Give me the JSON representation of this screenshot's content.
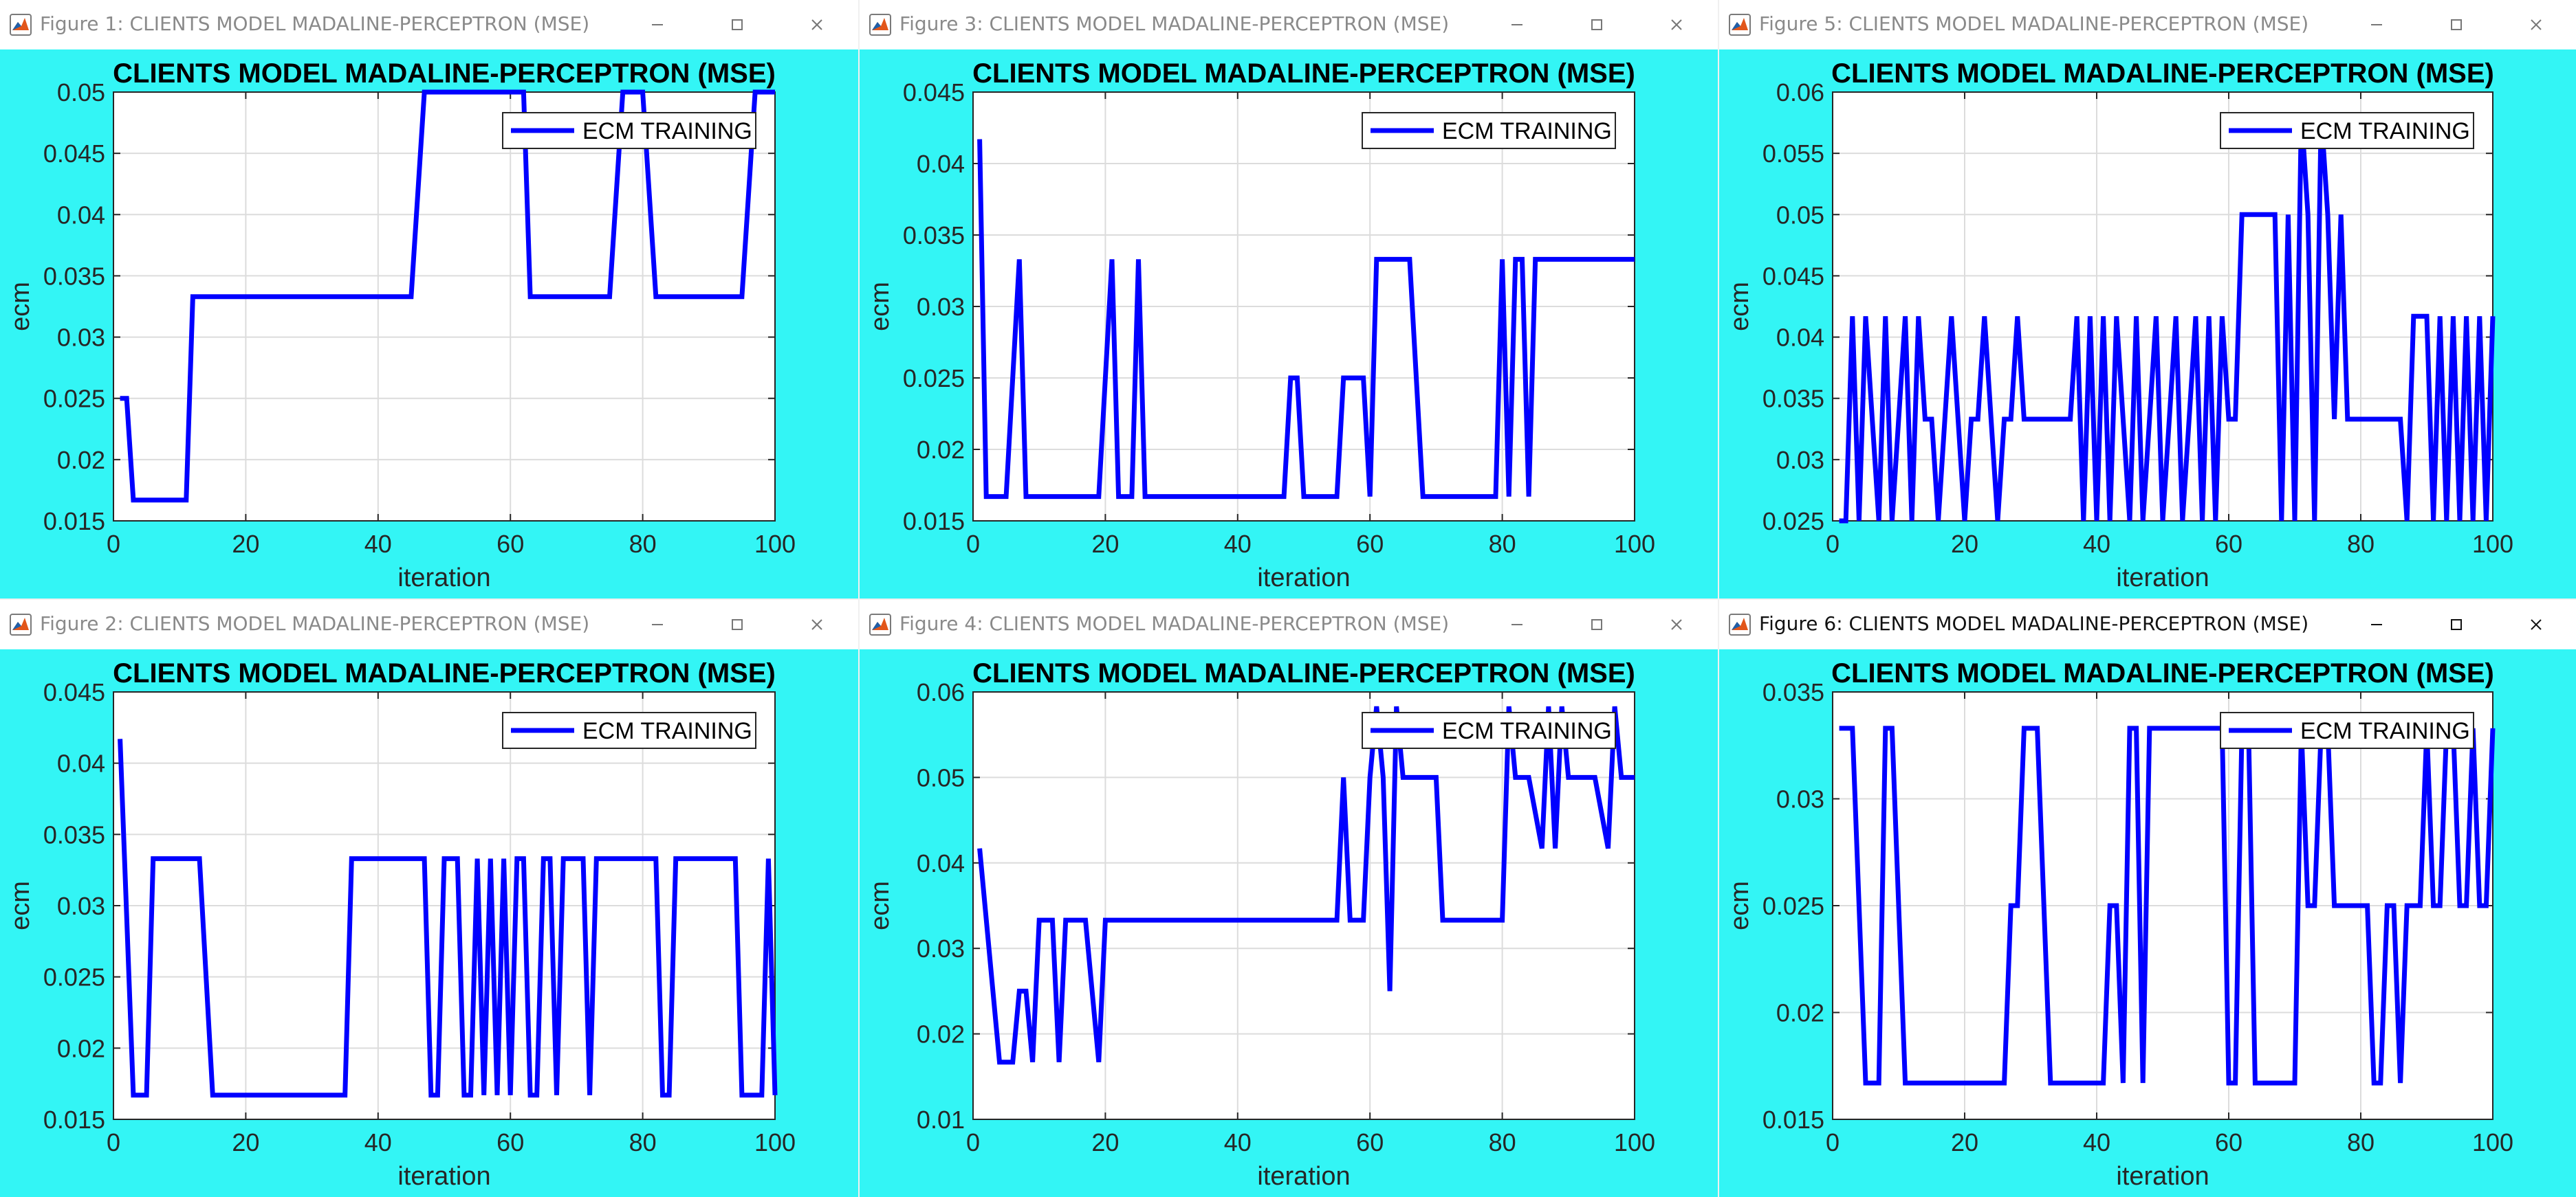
{
  "colors": {
    "figure_bg": "#33f5f5",
    "axes_bg": "#ffffff",
    "line": "#0000ff",
    "grid": "#dcdcdc",
    "titlebar_text_inactive": "#8a8a8a",
    "titlebar_text_active": "#111111"
  },
  "windows": [
    {
      "title": "Figure 1: CLIENTS MODEL MADALINE-PERCEPTRON (MSE)",
      "active": false,
      "minimize_icon": "minimize-icon",
      "maximize_icon": "maximize-icon",
      "close_icon": "close-icon"
    },
    {
      "title": "Figure 3: CLIENTS MODEL MADALINE-PERCEPTRON (MSE)",
      "active": false
    },
    {
      "title": "Figure 5: CLIENTS MODEL MADALINE-PERCEPTRON (MSE)",
      "active": false
    },
    {
      "title": "Figure 2: CLIENTS MODEL MADALINE-PERCEPTRON (MSE)",
      "active": false
    },
    {
      "title": "Figure 4: CLIENTS MODEL MADALINE-PERCEPTRON (MSE)",
      "active": false
    },
    {
      "title": "Figure 6: CLIENTS MODEL MADALINE-PERCEPTRON (MSE)",
      "active": true
    }
  ],
  "chart_data": [
    {
      "type": "line",
      "title": "CLIENTS MODEL MADALINE-PERCEPTRON (MSE)",
      "xlabel": "iteration",
      "ylabel": "ecm",
      "xlim": [
        0,
        100
      ],
      "ylim": [
        0.015,
        0.05
      ],
      "xticks": [
        "0",
        "20",
        "40",
        "60",
        "80",
        "100"
      ],
      "yticks": [
        "0.015",
        "0.02",
        "0.025",
        "0.03",
        "0.035",
        "0.04",
        "0.045",
        "0.05"
      ],
      "grid": true,
      "legend_position": "top-right",
      "series": [
        {
          "name": "ECM TRAINING",
          "x": [
            1,
            2,
            3,
            11,
            12,
            45,
            47,
            62,
            63,
            75,
            77,
            80,
            82,
            95,
            97,
            100
          ],
          "y": [
            0.025,
            0.025,
            0.0167,
            0.0167,
            0.0333,
            0.0333,
            0.05,
            0.05,
            0.0333,
            0.0333,
            0.05,
            0.05,
            0.0333,
            0.0333,
            0.05,
            0.05
          ]
        }
      ]
    },
    {
      "type": "line",
      "title": "CLIENTS MODEL MADALINE-PERCEPTRON (MSE)",
      "xlabel": "iteration",
      "ylabel": "ecm",
      "xlim": [
        0,
        100
      ],
      "ylim": [
        0.015,
        0.045
      ],
      "xticks": [
        "0",
        "20",
        "40",
        "60",
        "80",
        "100"
      ],
      "yticks": [
        "0.015",
        "0.02",
        "0.025",
        "0.03",
        "0.035",
        "0.04",
        "0.045"
      ],
      "grid": true,
      "legend_position": "top-right",
      "series": [
        {
          "name": "ECM TRAINING",
          "x": [
            1,
            2,
            5,
            7,
            8,
            19,
            21,
            22,
            24,
            25,
            26,
            47,
            48,
            49,
            50,
            55,
            56,
            59,
            60,
            61,
            62,
            66,
            68,
            79,
            80,
            81,
            82,
            83,
            84,
            85,
            100
          ],
          "y": [
            0.0417,
            0.0167,
            0.0167,
            0.0333,
            0.0167,
            0.0167,
            0.0333,
            0.0167,
            0.0167,
            0.0333,
            0.0167,
            0.0167,
            0.025,
            0.025,
            0.0167,
            0.0167,
            0.025,
            0.025,
            0.0167,
            0.0333,
            0.0333,
            0.0333,
            0.0167,
            0.0167,
            0.0333,
            0.0167,
            0.0333,
            0.0333,
            0.0167,
            0.0333,
            0.0333
          ]
        }
      ]
    },
    {
      "type": "line",
      "title": "CLIENTS MODEL MADALINE-PERCEPTRON (MSE)",
      "xlabel": "iteration",
      "ylabel": "ecm",
      "xlim": [
        0,
        100
      ],
      "ylim": [
        0.025,
        0.06
      ],
      "xticks": [
        "0",
        "20",
        "40",
        "60",
        "80",
        "100"
      ],
      "yticks": [
        "0.025",
        "0.03",
        "0.035",
        "0.04",
        "0.045",
        "0.05",
        "0.055",
        "0.06"
      ],
      "grid": true,
      "legend_position": "top-right",
      "series": [
        {
          "name": "ECM TRAINING",
          "x": [
            1,
            2,
            3,
            4,
            5,
            6,
            7,
            8,
            9,
            10,
            11,
            12,
            13,
            14,
            15,
            16,
            17,
            18,
            19,
            20,
            21,
            22,
            23,
            24,
            25,
            26,
            27,
            28,
            29,
            30,
            36,
            37,
            38,
            39,
            40,
            41,
            42,
            43,
            44,
            45,
            46,
            47,
            48,
            49,
            50,
            51,
            52,
            53,
            54,
            55,
            56,
            57,
            58,
            59,
            60,
            61,
            62,
            63,
            64,
            67,
            68,
            69,
            70,
            71,
            72,
            73,
            74,
            75,
            76,
            77,
            78,
            86,
            87,
            88,
            89,
            90,
            91,
            92,
            93,
            94,
            95,
            96,
            97,
            98,
            99,
            100
          ],
          "y": [
            0.025,
            0.025,
            0.0417,
            0.025,
            0.0417,
            0.0333,
            0.025,
            0.0417,
            0.025,
            0.0333,
            0.0417,
            0.025,
            0.0417,
            0.0333,
            0.0333,
            0.025,
            0.0333,
            0.0417,
            0.0333,
            0.025,
            0.0333,
            0.0333,
            0.0417,
            0.0333,
            0.025,
            0.0333,
            0.0333,
            0.0417,
            0.0333,
            0.0333,
            0.0333,
            0.0417,
            0.025,
            0.0417,
            0.025,
            0.0417,
            0.025,
            0.0417,
            0.0333,
            0.025,
            0.0417,
            0.025,
            0.0333,
            0.0417,
            0.025,
            0.0333,
            0.0417,
            0.025,
            0.0333,
            0.0417,
            0.025,
            0.0417,
            0.025,
            0.0417,
            0.0333,
            0.0333,
            0.05,
            0.05,
            0.05,
            0.05,
            0.025,
            0.05,
            0.025,
            0.0583,
            0.05,
            0.025,
            0.0583,
            0.05,
            0.0333,
            0.05,
            0.0333,
            0.0333,
            0.025,
            0.0417,
            0.0417,
            0.0417,
            0.025,
            0.0417,
            0.025,
            0.0417,
            0.025,
            0.0417,
            0.025,
            0.0417,
            0.025,
            0.0417
          ]
        }
      ]
    },
    {
      "type": "line",
      "title": "CLIENTS MODEL MADALINE-PERCEPTRON (MSE)",
      "xlabel": "iteration",
      "ylabel": "ecm",
      "xlim": [
        0,
        100
      ],
      "ylim": [
        0.015,
        0.045
      ],
      "xticks": [
        "0",
        "20",
        "40",
        "60",
        "80",
        "100"
      ],
      "yticks": [
        "0.015",
        "0.02",
        "0.025",
        "0.03",
        "0.035",
        "0.04",
        "0.045"
      ],
      "grid": true,
      "legend_position": "top-right",
      "series": [
        {
          "name": "ECM TRAINING",
          "x": [
            1,
            3,
            5,
            6,
            13,
            15,
            35,
            36,
            47,
            48,
            49,
            50,
            52,
            53,
            54,
            55,
            56,
            57,
            58,
            59,
            60,
            61,
            62,
            63,
            64,
            65,
            66,
            67,
            68,
            69,
            71,
            72,
            73,
            74,
            82,
            83,
            84,
            85,
            94,
            95,
            96,
            98,
            99,
            100
          ],
          "y": [
            0.0417,
            0.0167,
            0.0167,
            0.0333,
            0.0333,
            0.0167,
            0.0167,
            0.0333,
            0.0333,
            0.0167,
            0.0167,
            0.0333,
            0.0333,
            0.0167,
            0.0167,
            0.0333,
            0.0167,
            0.0333,
            0.0167,
            0.0333,
            0.0167,
            0.0333,
            0.0333,
            0.0167,
            0.0167,
            0.0333,
            0.0333,
            0.0167,
            0.0333,
            0.0333,
            0.0333,
            0.0167,
            0.0333,
            0.0333,
            0.0333,
            0.0167,
            0.0167,
            0.0333,
            0.0333,
            0.0167,
            0.0167,
            0.0167,
            0.0333,
            0.0167
          ]
        }
      ]
    },
    {
      "type": "line",
      "title": "CLIENTS MODEL MADALINE-PERCEPTRON (MSE)",
      "xlabel": "iteration",
      "ylabel": "ecm",
      "xlim": [
        0,
        100
      ],
      "ylim": [
        0.01,
        0.06
      ],
      "xticks": [
        "0",
        "20",
        "40",
        "60",
        "80",
        "100"
      ],
      "yticks": [
        "0.01",
        "0.02",
        "0.03",
        "0.04",
        "0.05",
        "0.06"
      ],
      "grid": true,
      "legend_position": "top-right",
      "series": [
        {
          "name": "ECM TRAINING",
          "x": [
            1,
            4,
            6,
            7,
            8,
            9,
            10,
            12,
            13,
            14,
            15,
            17,
            19,
            20,
            21,
            55,
            56,
            57,
            59,
            60,
            61,
            62,
            63,
            64,
            65,
            66,
            70,
            71,
            80,
            81,
            82,
            84,
            86,
            87,
            88,
            89,
            90,
            91,
            92,
            93,
            94,
            96,
            97,
            98,
            99,
            100
          ],
          "y": [
            0.0417,
            0.0167,
            0.0167,
            0.025,
            0.025,
            0.0167,
            0.0333,
            0.0333,
            0.0167,
            0.0333,
            0.0333,
            0.0333,
            0.0167,
            0.0333,
            0.0333,
            0.0333,
            0.05,
            0.0333,
            0.0333,
            0.05,
            0.0583,
            0.05,
            0.025,
            0.0583,
            0.05,
            0.05,
            0.05,
            0.0333,
            0.0333,
            0.0583,
            0.05,
            0.05,
            0.0417,
            0.0583,
            0.0417,
            0.0583,
            0.05,
            0.05,
            0.05,
            0.05,
            0.05,
            0.0417,
            0.0583,
            0.05,
            0.05,
            0.05
          ]
        }
      ]
    },
    {
      "type": "line",
      "title": "CLIENTS MODEL MADALINE-PERCEPTRON (MSE)",
      "xlabel": "iteration",
      "ylabel": "ecm",
      "xlim": [
        0,
        100
      ],
      "ylim": [
        0.015,
        0.035
      ],
      "xticks": [
        "0",
        "20",
        "40",
        "60",
        "80",
        "100"
      ],
      "yticks": [
        "0.015",
        "0.02",
        "0.025",
        "0.03",
        "0.035"
      ],
      "grid": true,
      "legend_position": "top-right",
      "series": [
        {
          "name": "ECM TRAINING",
          "x": [
            1,
            3,
            5,
            7,
            8,
            9,
            11,
            26,
            27,
            28,
            29,
            31,
            33,
            41,
            42,
            43,
            44,
            45,
            46,
            47,
            48,
            59,
            60,
            61,
            62,
            63,
            64,
            65,
            66,
            70,
            71,
            72,
            73,
            74,
            75,
            76,
            77,
            78,
            79,
            80,
            81,
            82,
            83,
            84,
            85,
            86,
            87,
            88,
            89,
            90,
            91,
            92,
            93,
            94,
            95,
            96,
            97,
            98,
            99,
            100
          ],
          "y": [
            0.0333,
            0.0333,
            0.0167,
            0.0167,
            0.0333,
            0.0333,
            0.0167,
            0.0167,
            0.025,
            0.025,
            0.0333,
            0.0333,
            0.0167,
            0.0167,
            0.025,
            0.025,
            0.0167,
            0.0333,
            0.0333,
            0.0167,
            0.0333,
            0.0333,
            0.0167,
            0.0167,
            0.0333,
            0.0333,
            0.0167,
            0.0167,
            0.0167,
            0.0167,
            0.0333,
            0.025,
            0.025,
            0.0333,
            0.0333,
            0.025,
            0.025,
            0.025,
            0.025,
            0.025,
            0.025,
            0.0167,
            0.0167,
            0.025,
            0.025,
            0.0167,
            0.025,
            0.025,
            0.025,
            0.0333,
            0.025,
            0.025,
            0.0333,
            0.0333,
            0.025,
            0.025,
            0.0333,
            0.025,
            0.025,
            0.0333
          ]
        }
      ]
    }
  ]
}
